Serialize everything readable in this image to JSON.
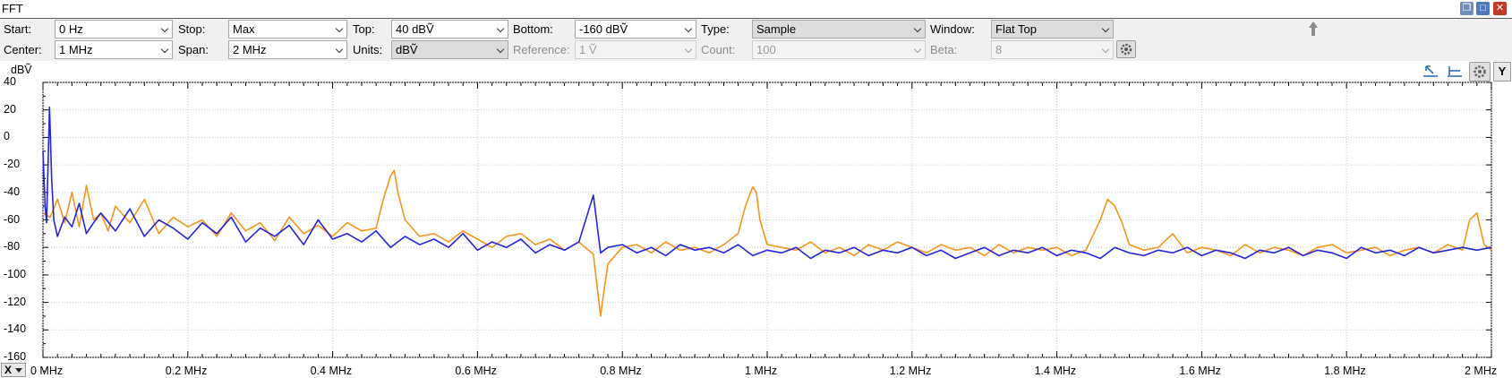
{
  "window": {
    "title": "FFT"
  },
  "toolbar": {
    "start": {
      "label": "Start:",
      "value": "0 Hz"
    },
    "stop": {
      "label": "Stop:",
      "value": "Max"
    },
    "top": {
      "label": "Top:",
      "value": "40 dBṼ"
    },
    "bottom": {
      "label": "Bottom:",
      "value": "-160 dBṼ"
    },
    "type": {
      "label": "Type:",
      "value": "Sample"
    },
    "window": {
      "label": "Window:",
      "value": "Flat Top"
    },
    "center": {
      "label": "Center:",
      "value": "1 MHz"
    },
    "span": {
      "label": "Span:",
      "value": "2 MHz"
    },
    "units": {
      "label": "Units:",
      "value": "dBṼ"
    },
    "reference": {
      "label": "Reference:",
      "value": "1 Ṽ"
    },
    "count": {
      "label": "Count:",
      "value": "100"
    },
    "beta": {
      "label": "Beta:",
      "value": "8"
    }
  },
  "plot": {
    "y_unit_label": "dBṼ",
    "x_cursor_button": "X",
    "y_cursor_button": "Y"
  },
  "chart_data": {
    "type": "line",
    "ylabel": "dBṼ",
    "xlim": [
      0,
      2
    ],
    "ylim": [
      -160,
      40
    ],
    "x_unit": "MHz",
    "y_ticks": [
      "40",
      "20",
      "0",
      "-20",
      "-40",
      "-60",
      "-80",
      "-100",
      "-120",
      "-140",
      "-160"
    ],
    "x_ticks": [
      "0 MHz",
      "0.2 MHz",
      "0.4 MHz",
      "0.6 MHz",
      "0.8 MHz",
      "1 MHz",
      "1.2 MHz",
      "1.4 MHz",
      "1.6 MHz",
      "1.8 MHz",
      "2 MHz"
    ],
    "grid": true,
    "series": [
      {
        "color": "#f7941d",
        "x": [
          0,
          0.01,
          0.02,
          0.03,
          0.04,
          0.05,
          0.06,
          0.07,
          0.08,
          0.09,
          0.1,
          0.12,
          0.14,
          0.16,
          0.18,
          0.2,
          0.22,
          0.24,
          0.26,
          0.28,
          0.3,
          0.32,
          0.34,
          0.36,
          0.38,
          0.4,
          0.42,
          0.44,
          0.46,
          0.47,
          0.48,
          0.485,
          0.49,
          0.5,
          0.52,
          0.54,
          0.56,
          0.58,
          0.6,
          0.62,
          0.64,
          0.66,
          0.68,
          0.7,
          0.72,
          0.74,
          0.76,
          0.77,
          0.775,
          0.78,
          0.8,
          0.82,
          0.84,
          0.86,
          0.88,
          0.9,
          0.92,
          0.94,
          0.96,
          0.97,
          0.98,
          0.985,
          0.99,
          1.0,
          1.02,
          1.04,
          1.06,
          1.08,
          1.1,
          1.12,
          1.14,
          1.16,
          1.18,
          1.2,
          1.22,
          1.24,
          1.26,
          1.28,
          1.3,
          1.32,
          1.34,
          1.36,
          1.38,
          1.4,
          1.42,
          1.44,
          1.46,
          1.47,
          1.48,
          1.49,
          1.5,
          1.52,
          1.54,
          1.56,
          1.58,
          1.6,
          1.62,
          1.64,
          1.66,
          1.68,
          1.7,
          1.72,
          1.74,
          1.76,
          1.78,
          1.8,
          1.82,
          1.84,
          1.86,
          1.88,
          1.9,
          1.92,
          1.94,
          1.96,
          1.97,
          1.98,
          1.99,
          2.0
        ],
        "y": [
          -55,
          -58,
          -45,
          -62,
          -40,
          -65,
          -35,
          -60,
          -55,
          -68,
          -50,
          -62,
          -45,
          -70,
          -58,
          -65,
          -60,
          -72,
          -55,
          -68,
          -62,
          -75,
          -58,
          -70,
          -64,
          -72,
          -62,
          -68,
          -66,
          -45,
          -28,
          -24,
          -40,
          -60,
          -72,
          -70,
          -76,
          -68,
          -74,
          -80,
          -72,
          -70,
          -78,
          -74,
          -82,
          -76,
          -85,
          -130,
          -110,
          -92,
          -80,
          -78,
          -84,
          -76,
          -82,
          -80,
          -84,
          -78,
          -70,
          -50,
          -36,
          -40,
          -60,
          -78,
          -80,
          -82,
          -76,
          -84,
          -80,
          -86,
          -78,
          -82,
          -76,
          -80,
          -84,
          -78,
          -82,
          -80,
          -86,
          -78,
          -84,
          -80,
          -82,
          -80,
          -86,
          -82,
          -60,
          -45,
          -50,
          -62,
          -78,
          -82,
          -80,
          -70,
          -84,
          -80,
          -82,
          -86,
          -78,
          -84,
          -80,
          -82,
          -86,
          -80,
          -78,
          -84,
          -82,
          -80,
          -86,
          -82,
          -80,
          -84,
          -78,
          -82,
          -60,
          -55,
          -78,
          -82
        ]
      },
      {
        "color": "#2424d8",
        "x": [
          0,
          0.003,
          0.005,
          0.007,
          0.009,
          0.012,
          0.015,
          0.02,
          0.03,
          0.04,
          0.05,
          0.06,
          0.07,
          0.08,
          0.1,
          0.12,
          0.14,
          0.16,
          0.18,
          0.2,
          0.22,
          0.24,
          0.26,
          0.28,
          0.3,
          0.32,
          0.34,
          0.36,
          0.38,
          0.4,
          0.42,
          0.44,
          0.46,
          0.48,
          0.5,
          0.52,
          0.54,
          0.56,
          0.58,
          0.6,
          0.62,
          0.64,
          0.66,
          0.68,
          0.7,
          0.72,
          0.74,
          0.76,
          0.77,
          0.78,
          0.8,
          0.82,
          0.84,
          0.86,
          0.88,
          0.9,
          0.92,
          0.94,
          0.96,
          0.98,
          1.0,
          1.02,
          1.04,
          1.06,
          1.08,
          1.1,
          1.12,
          1.14,
          1.16,
          1.18,
          1.2,
          1.22,
          1.24,
          1.26,
          1.28,
          1.3,
          1.32,
          1.34,
          1.36,
          1.38,
          1.4,
          1.42,
          1.44,
          1.46,
          1.48,
          1.5,
          1.52,
          1.54,
          1.56,
          1.58,
          1.6,
          1.62,
          1.64,
          1.66,
          1.68,
          1.7,
          1.72,
          1.74,
          1.76,
          1.78,
          1.8,
          1.82,
          1.84,
          1.86,
          1.88,
          1.9,
          1.92,
          1.94,
          1.96,
          1.98,
          2.0
        ],
        "y": [
          -10,
          -50,
          -62,
          -20,
          22,
          -30,
          -60,
          -72,
          -58,
          -65,
          -48,
          -70,
          -62,
          -55,
          -68,
          -52,
          -72,
          -60,
          -66,
          -74,
          -62,
          -70,
          -58,
          -76,
          -66,
          -72,
          -64,
          -78,
          -60,
          -74,
          -70,
          -76,
          -68,
          -80,
          -72,
          -78,
          -74,
          -80,
          -70,
          -82,
          -76,
          -80,
          -74,
          -84,
          -78,
          -82,
          -76,
          -42,
          -84,
          -80,
          -78,
          -84,
          -80,
          -86,
          -78,
          -82,
          -80,
          -84,
          -78,
          -86,
          -82,
          -84,
          -80,
          -88,
          -82,
          -84,
          -80,
          -86,
          -82,
          -84,
          -80,
          -86,
          -82,
          -88,
          -84,
          -80,
          -86,
          -82,
          -84,
          -80,
          -86,
          -82,
          -84,
          -88,
          -80,
          -84,
          -86,
          -82,
          -84,
          -80,
          -86,
          -82,
          -84,
          -88,
          -82,
          -84,
          -80,
          -86,
          -82,
          -84,
          -88,
          -80,
          -84,
          -82,
          -86,
          -80,
          -84,
          -82,
          -80,
          -82,
          -80
        ]
      }
    ]
  }
}
